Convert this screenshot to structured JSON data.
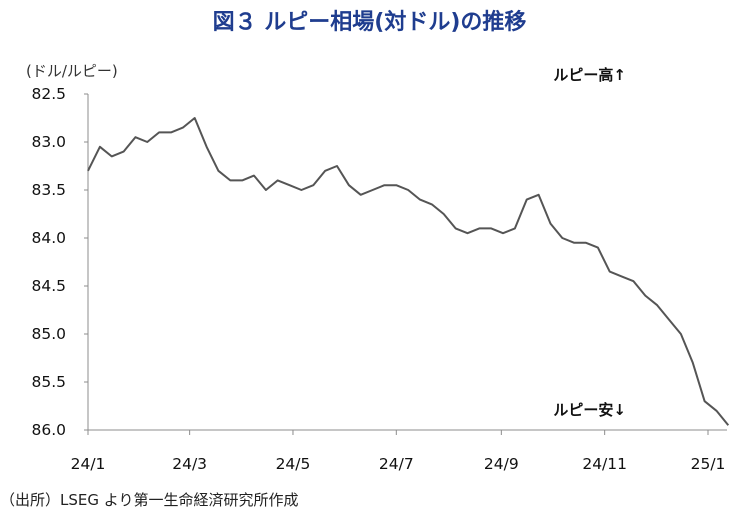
{
  "title": "図３ ルピー相場(対ドル)の推移",
  "unit_label": "(ドル/ルピー)",
  "source_note": "（出所）LSEG より第一生命経済研究所作成",
  "annotations": {
    "up": "ルピー高↑",
    "down": "ルピー安↓"
  },
  "colors": {
    "title": "#1f3d8f",
    "line": "#555555",
    "axis": "#8c8c8c"
  },
  "chart_data": {
    "type": "line",
    "title": "図３ ルピー相場(対ドル)の推移",
    "ylabel": "(ドル/ルピー)",
    "xlabel": "",
    "y_inverted": true,
    "ylim": [
      82.5,
      86.0
    ],
    "y_ticks": [
      "82.5",
      "83.0",
      "83.5",
      "84.0",
      "84.5",
      "85.0",
      "85.5",
      "86.0"
    ],
    "x_ticks": [
      "24/1",
      "24/3",
      "24/5",
      "24/7",
      "24/9",
      "24/11",
      "25/1"
    ],
    "grid": false,
    "series": [
      {
        "name": "",
        "x": [
          "2024-01-01",
          "2024-01-08",
          "2024-01-15",
          "2024-01-22",
          "2024-01-29",
          "2024-02-05",
          "2024-02-12",
          "2024-02-19",
          "2024-02-26",
          "2024-03-04",
          "2024-03-11",
          "2024-03-18",
          "2024-03-25",
          "2024-04-01",
          "2024-04-08",
          "2024-04-15",
          "2024-04-22",
          "2024-04-29",
          "2024-05-06",
          "2024-05-13",
          "2024-05-20",
          "2024-05-27",
          "2024-06-03",
          "2024-06-10",
          "2024-06-17",
          "2024-06-24",
          "2024-07-01",
          "2024-07-08",
          "2024-07-15",
          "2024-07-22",
          "2024-07-29",
          "2024-08-05",
          "2024-08-12",
          "2024-08-19",
          "2024-08-26",
          "2024-09-02",
          "2024-09-09",
          "2024-09-16",
          "2024-09-23",
          "2024-09-30",
          "2024-10-07",
          "2024-10-14",
          "2024-10-21",
          "2024-10-28",
          "2024-11-04",
          "2024-11-11",
          "2024-11-18",
          "2024-11-25",
          "2024-12-02",
          "2024-12-09",
          "2024-12-16",
          "2024-12-23",
          "2024-12-30",
          "2025-01-06",
          "2025-01-13"
        ],
        "values": [
          83.3,
          83.05,
          83.15,
          83.1,
          82.95,
          83.0,
          82.9,
          82.9,
          82.85,
          82.75,
          83.05,
          83.3,
          83.4,
          83.4,
          83.35,
          83.5,
          83.4,
          83.45,
          83.5,
          83.45,
          83.3,
          83.25,
          83.45,
          83.55,
          83.5,
          83.45,
          83.45,
          83.5,
          83.6,
          83.65,
          83.75,
          83.9,
          83.95,
          83.9,
          83.9,
          83.95,
          83.9,
          83.6,
          83.55,
          83.85,
          84.0,
          84.05,
          84.05,
          84.1,
          84.35,
          84.4,
          84.45,
          84.6,
          84.7,
          84.85,
          85.0,
          85.3,
          85.7,
          85.8,
          85.95
        ]
      }
    ]
  }
}
